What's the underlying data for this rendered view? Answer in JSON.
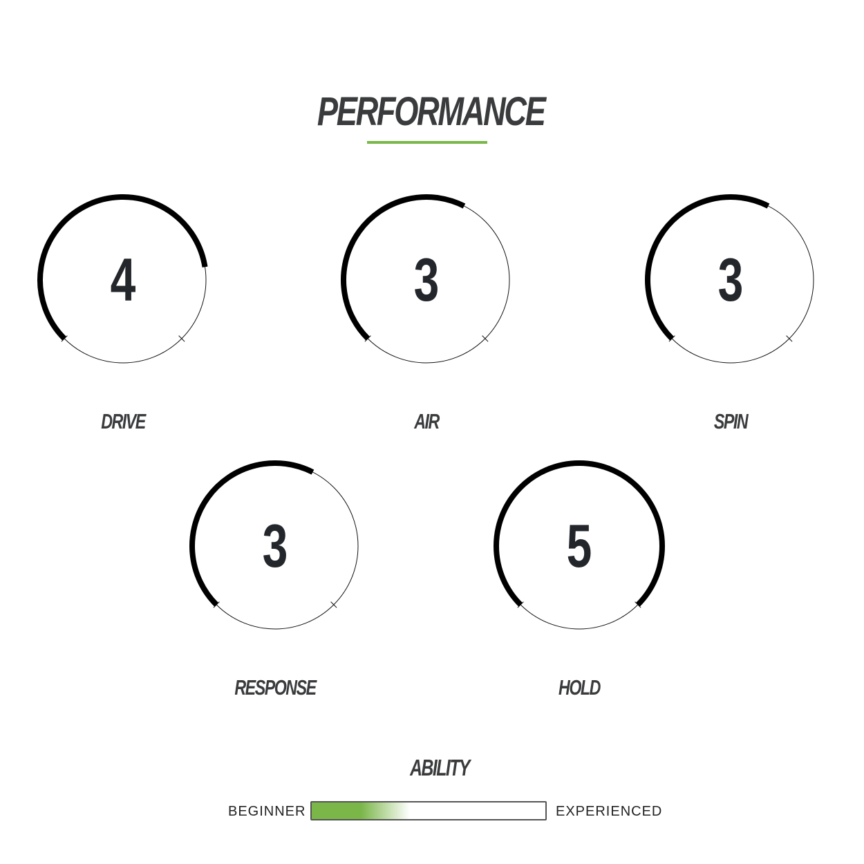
{
  "title": "PERFORMANCE",
  "accent_color": "#7ab648",
  "scale_max": 5,
  "gauges": [
    {
      "label": "DRIVE",
      "value": "4"
    },
    {
      "label": "AIR",
      "value": "3"
    },
    {
      "label": "SPIN",
      "value": "3"
    },
    {
      "label": "RESPONSE",
      "value": "3"
    },
    {
      "label": "HOLD",
      "value": "5"
    }
  ],
  "ability": {
    "title": "ABILITY",
    "min_label": "BEGINNER",
    "max_label": "EXPERIENCED",
    "level_fraction": 0.35
  }
}
